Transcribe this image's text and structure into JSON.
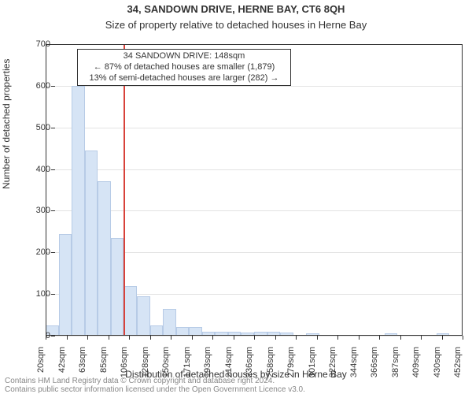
{
  "title": "34, SANDOWN DRIVE, HERNE BAY, CT6 8QH",
  "subtitle": "Size of property relative to detached houses in Herne Bay",
  "title_fontsize": 13,
  "subtitle_fontsize": 13,
  "ylabel": "Number of detached properties",
  "xlabel": "Distribution of detached houses by size in Herne Bay",
  "axis_label_fontsize": 12,
  "tick_fontsize": 11,
  "footer_fontsize": 10,
  "annotation_fontsize": 11,
  "footer_line1": "Contains HM Land Registry data © Crown copyright and database right 2024.",
  "footer_line2": "Contains public sector information licensed under the Open Government Licence v3.0.",
  "chart": {
    "type": "histogram-bar",
    "background_color": "#ffffff",
    "bar_fill": "#d6e4f5",
    "bar_stroke": "#b7cbe6",
    "grid_color": "#e3e3e3",
    "border_color": "#333333",
    "ylim": [
      0,
      700
    ],
    "yticks": [
      0,
      100,
      200,
      300,
      400,
      500,
      600,
      700
    ],
    "xtick_labels": [
      "20sqm",
      "42sqm",
      "63sqm",
      "85sqm",
      "106sqm",
      "128sqm",
      "150sqm",
      "171sqm",
      "193sqm",
      "214sqm",
      "236sqm",
      "258sqm",
      "279sqm",
      "301sqm",
      "322sqm",
      "344sqm",
      "366sqm",
      "387sqm",
      "409sqm",
      "430sqm",
      "452sqm"
    ],
    "xtick_positions": [
      0,
      1,
      2,
      3,
      4,
      5,
      6,
      7,
      8,
      9,
      10,
      11,
      12,
      13,
      14,
      15,
      16,
      17,
      18,
      19,
      20
    ],
    "bar_count": 32,
    "bar_values": [
      25,
      245,
      600,
      445,
      370,
      235,
      120,
      95,
      25,
      65,
      20,
      20,
      10,
      10,
      10,
      8,
      10,
      10,
      8,
      0,
      5,
      0,
      0,
      0,
      0,
      0,
      5,
      0,
      0,
      0,
      5,
      0
    ],
    "bar_width_ratio": 1.0,
    "marker": {
      "position_bar_index": 6.0,
      "color": "#d8423a"
    },
    "annotation": {
      "line1": "34 SANDOWN DRIVE: 148sqm",
      "line2": "← 87% of detached houses are smaller (1,879)",
      "line3": "13% of semi-detached houses are larger (282) →",
      "box_border": "#333333",
      "box_bg": "#ffffff"
    }
  }
}
